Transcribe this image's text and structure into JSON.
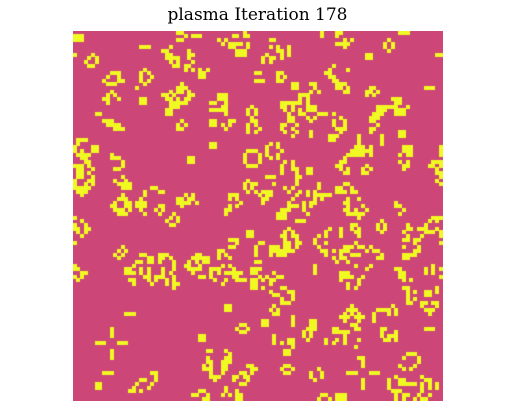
{
  "figure": {
    "title": "plasma Iteration 178"
  },
  "grid": {
    "colormap": "plasma",
    "dead_color": "#CC4778",
    "alive_color": "#F0F921",
    "iteration": 178
  }
}
